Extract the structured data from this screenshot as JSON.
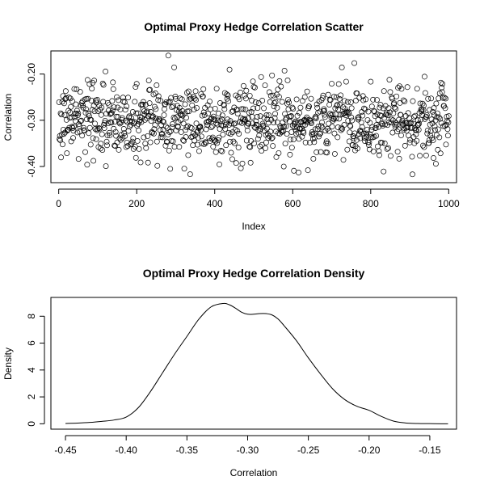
{
  "chart_data": [
    {
      "type": "scatter",
      "title": "Optimal Proxy Hedge Correlation Scatter",
      "xlabel": "Index",
      "ylabel": "Correlation",
      "xlim": [
        -20,
        1020
      ],
      "ylim": [
        -0.435,
        -0.15
      ],
      "xticks": [
        0,
        200,
        400,
        600,
        800,
        1000
      ],
      "xtick_labels": [
        "0",
        "200",
        "400",
        "600",
        "800",
        "1000"
      ],
      "yticks": [
        -0.4,
        -0.3,
        -0.2
      ],
      "ytick_labels": [
        "-0.40",
        "-0.30",
        "-0.20"
      ],
      "n_points": 1000,
      "x_range": [
        1,
        1000
      ],
      "y_range": [
        -0.425,
        -0.16
      ],
      "y_center": -0.3,
      "grid": false,
      "marker": "open-circle"
    },
    {
      "type": "line",
      "title": "Optimal Proxy Hedge Correlation Density",
      "xlabel": "Correlation",
      "ylabel": "Density",
      "xlim": [
        -0.462,
        -0.128
      ],
      "ylim": [
        -0.4,
        9.4
      ],
      "xticks": [
        -0.45,
        -0.4,
        -0.35,
        -0.3,
        -0.25,
        -0.2,
        -0.15
      ],
      "xtick_labels": [
        "-0.45",
        "-0.40",
        "-0.35",
        "-0.30",
        "-0.25",
        "-0.20",
        "-0.15"
      ],
      "yticks": [
        0,
        2,
        4,
        6,
        8
      ],
      "ytick_labels": [
        "0",
        "2",
        "4",
        "6",
        "8"
      ],
      "grid": false,
      "x": [
        -0.45,
        -0.44,
        -0.43,
        -0.42,
        -0.41,
        -0.4,
        -0.39,
        -0.38,
        -0.37,
        -0.36,
        -0.35,
        -0.34,
        -0.33,
        -0.32,
        -0.315,
        -0.31,
        -0.305,
        -0.3,
        -0.295,
        -0.29,
        -0.285,
        -0.28,
        -0.275,
        -0.27,
        -0.26,
        -0.25,
        -0.24,
        -0.23,
        -0.22,
        -0.21,
        -0.2,
        -0.19,
        -0.18,
        -0.17,
        -0.16,
        -0.15,
        -0.14,
        -0.135
      ],
      "y": [
        0.02,
        0.05,
        0.1,
        0.18,
        0.28,
        0.5,
        1.2,
        2.4,
        3.8,
        5.2,
        6.5,
        7.8,
        8.7,
        8.95,
        8.85,
        8.6,
        8.3,
        8.15,
        8.15,
        8.2,
        8.2,
        8.1,
        7.8,
        7.3,
        6.2,
        4.9,
        3.7,
        2.6,
        1.8,
        1.3,
        1.0,
        0.55,
        0.2,
        0.06,
        0.02,
        0.01,
        0.0,
        0.0
      ]
    }
  ]
}
